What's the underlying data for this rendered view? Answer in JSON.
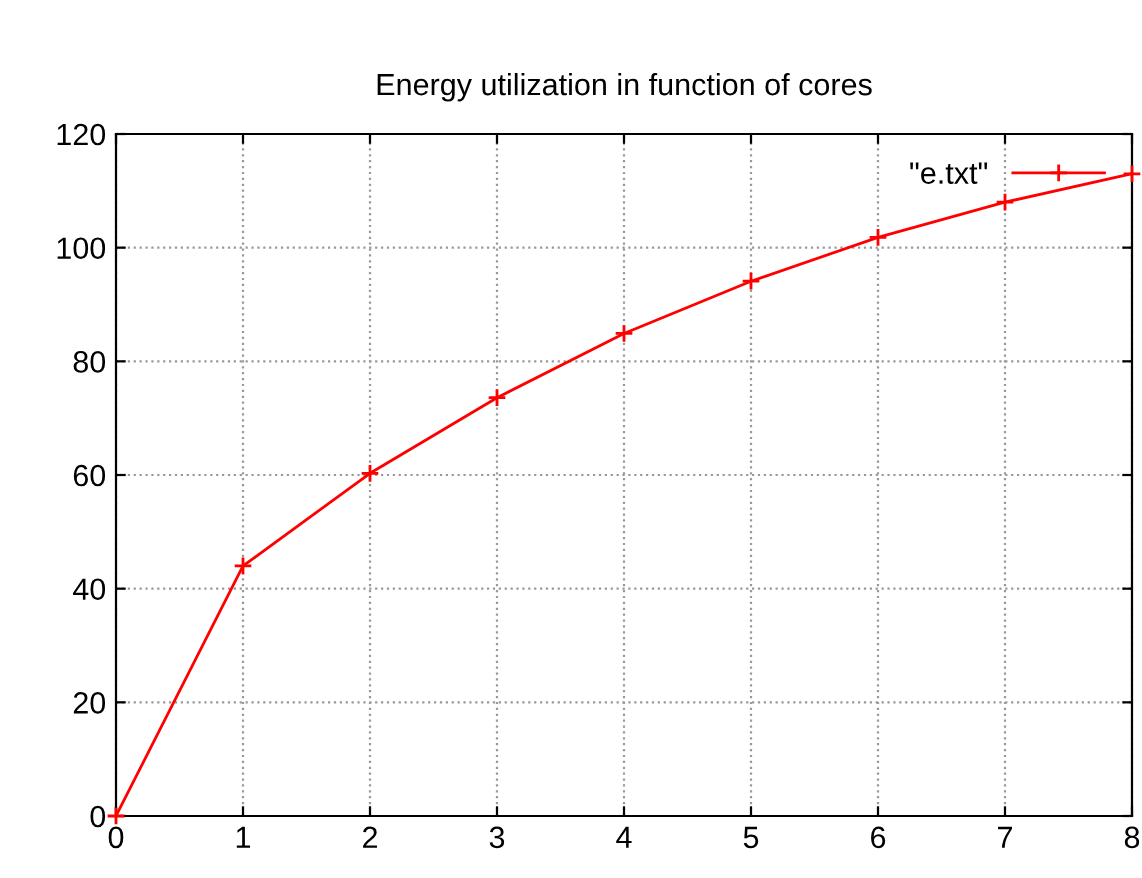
{
  "chart_data": {
    "type": "line",
    "title": "Energy utilization in function of cores",
    "x": [
      0,
      1,
      2,
      3,
      4,
      5,
      6,
      7,
      8
    ],
    "series": [
      {
        "name": "\"e.txt\"",
        "color": "#ff0000",
        "values": [
          0,
          44,
          60.3,
          73.6,
          84.9,
          94.1,
          101.8,
          108,
          113
        ]
      }
    ],
    "xlim": [
      0,
      8
    ],
    "xticks": [
      0,
      1,
      2,
      3,
      4,
      5,
      6,
      7,
      8
    ],
    "ylim": [
      0,
      120
    ],
    "yticks": [
      0,
      20,
      40,
      60,
      80,
      100,
      120
    ],
    "grid": true,
    "legend": "top right",
    "marker": "cross",
    "line_style": "solid"
  }
}
